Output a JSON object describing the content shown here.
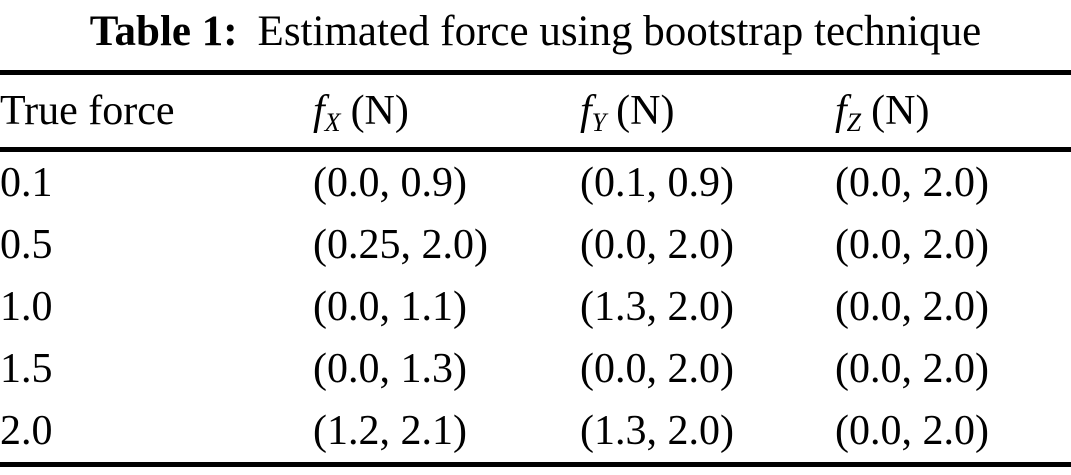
{
  "title": {
    "label": "Table 1:",
    "text": "Estimated force using bootstrap technique"
  },
  "table": {
    "columns": [
      {
        "label": "True force"
      },
      {
        "symbol": "f",
        "sub": "X",
        "unit": "(N)"
      },
      {
        "symbol": "f",
        "sub": "Y",
        "unit": "(N)"
      },
      {
        "symbol": "f",
        "sub": "Z",
        "unit": "(N)"
      }
    ],
    "rows": [
      {
        "cells": [
          "0.1",
          "(0.0, 0.9)",
          "(0.1, 0.9)",
          "(0.0, 2.0)"
        ]
      },
      {
        "cells": [
          "0.5",
          "(0.25, 2.0)",
          "(0.0, 2.0)",
          "(0.0, 2.0)"
        ]
      },
      {
        "cells": [
          "1.0",
          "(0.0, 1.1)",
          "(1.3, 2.0)",
          "(0.0, 2.0)"
        ]
      },
      {
        "cells": [
          "1.5",
          "(0.0, 1.3)",
          "(0.0, 2.0)",
          "(0.0, 2.0)"
        ]
      },
      {
        "cells": [
          "2.0",
          "(1.2, 2.1)",
          "(1.3, 2.0)",
          "(0.0, 2.0)"
        ]
      }
    ]
  },
  "colors": {
    "text": "#000000",
    "background": "#ffffff",
    "rule": "#000000"
  }
}
